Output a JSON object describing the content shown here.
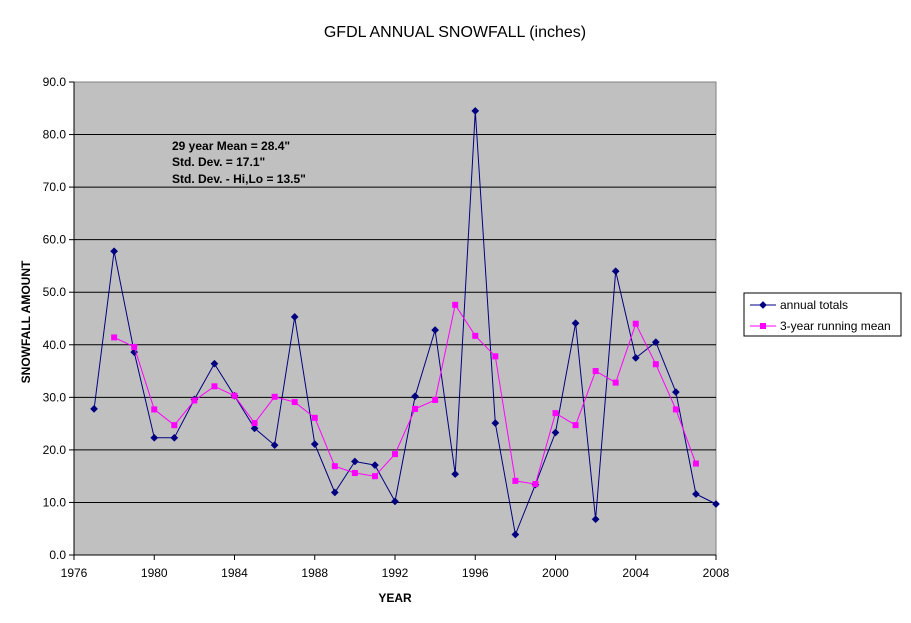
{
  "chart_data": {
    "type": "line",
    "title": "GFDL ANNUAL SNOWFALL (inches)",
    "xlabel": "YEAR",
    "ylabel": "SNOWFALL AMOUNT",
    "xlim": [
      1976,
      2008
    ],
    "ylim": [
      0,
      90
    ],
    "x_ticks": [
      1976,
      1980,
      1984,
      1988,
      1992,
      1996,
      2000,
      2004,
      2008
    ],
    "y_ticks": [
      "0.0",
      "10.0",
      "20.0",
      "30.0",
      "40.0",
      "50.0",
      "60.0",
      "70.0",
      "80.0",
      "90.0"
    ],
    "grid": "horizontal",
    "plot_background": "#c0c0c0",
    "legend_position": "right",
    "annotations": [
      "29 year Mean = 28.4\"",
      "Std. Dev. = 17.1\"",
      "Std. Dev. - Hi,Lo = 13.5\""
    ],
    "series": [
      {
        "name": "annual totals",
        "color": "#000080",
        "marker": "diamond",
        "x": [
          1977,
          1978,
          1979,
          1980,
          1981,
          1982,
          1983,
          1984,
          1985,
          1986,
          1987,
          1988,
          1989,
          1990,
          1991,
          1992,
          1993,
          1994,
          1995,
          1996,
          1997,
          1998,
          1999,
          2000,
          2001,
          2002,
          2003,
          2004,
          2005,
          2006,
          2007,
          2008
        ],
        "y": [
          27.8,
          57.8,
          38.6,
          22.3,
          22.3,
          29.6,
          36.4,
          30.3,
          24.1,
          20.9,
          45.3,
          21.1,
          11.9,
          17.8,
          17.1,
          10.2,
          30.2,
          42.8,
          15.4,
          84.5,
          25.1,
          3.9,
          13.4,
          23.3,
          44.1,
          6.8,
          54.0,
          37.5,
          40.5,
          31.0,
          11.6,
          9.7
        ]
      },
      {
        "name": "3-year running mean",
        "color": "#ff00ff",
        "marker": "square",
        "x": [
          1978,
          1979,
          1980,
          1981,
          1982,
          1983,
          1984,
          1985,
          1986,
          1987,
          1988,
          1989,
          1990,
          1991,
          1992,
          1993,
          1994,
          1995,
          1996,
          1997,
          1998,
          1999,
          2000,
          2001,
          2002,
          2003,
          2004,
          2005,
          2006,
          2007
        ],
        "y": [
          41.4,
          39.6,
          27.7,
          24.7,
          29.4,
          32.1,
          30.3,
          25.1,
          30.1,
          29.1,
          26.1,
          16.9,
          15.6,
          15.0,
          19.2,
          27.8,
          29.5,
          47.6,
          41.7,
          37.8,
          14.1,
          13.5,
          27.0,
          24.7,
          35.0,
          32.8,
          44.0,
          36.3,
          27.7,
          17.4
        ]
      }
    ]
  }
}
